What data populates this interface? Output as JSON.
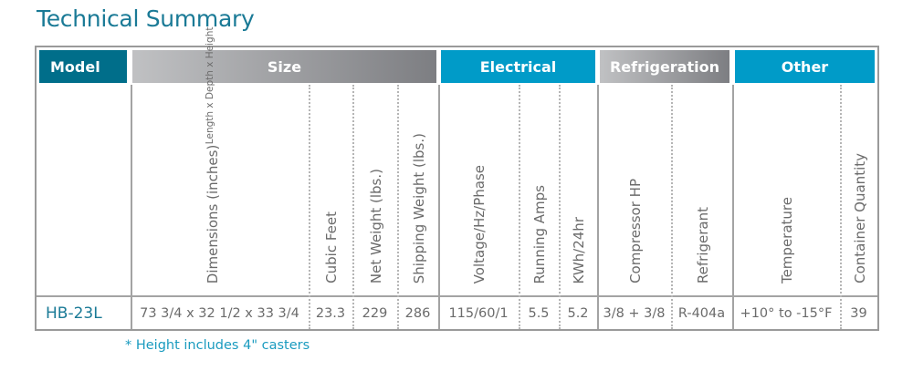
{
  "title": "Technical Summary",
  "groups": [
    {
      "label": "Model",
      "color": "#006e8a"
    },
    {
      "label": "Size",
      "color": "gradient #c0c1c3-#7d7e82"
    },
    {
      "label": "Electrical",
      "color": "#009bc8"
    },
    {
      "label": "Refrigeration",
      "color": "gradient #c0c1c3-#7d7e82"
    },
    {
      "label": "Other",
      "color": "#009bc8"
    }
  ],
  "columns": [
    {
      "label": "",
      "sub": ""
    },
    {
      "label": "Dimensions (inches)",
      "sub": "Length x Depth x Height"
    },
    {
      "label": "Cubic Feet",
      "sub": ""
    },
    {
      "label": "Net Weight (lbs.)",
      "sub": ""
    },
    {
      "label": "Shipping Weight (lbs.)",
      "sub": ""
    },
    {
      "label": "Voltage/Hz/Phase",
      "sub": ""
    },
    {
      "label": "Running Amps",
      "sub": ""
    },
    {
      "label": "KWh/24hr",
      "sub": ""
    },
    {
      "label": "Compressor HP",
      "sub": ""
    },
    {
      "label": "Refrigerant",
      "sub": ""
    },
    {
      "label": "Temperature",
      "sub": ""
    },
    {
      "label": "Container Quantity",
      "sub": ""
    }
  ],
  "row": [
    "HB-23L",
    "73 3/4 x 32 1/2 x 33 3/4",
    "23.3",
    "229",
    "286",
    "115/60/1",
    "5.5",
    "5.2",
    "3/8 + 3/8",
    "R-404a",
    "+10° to -15°F",
    "39"
  ],
  "footnote": "* Height includes 4\" casters"
}
